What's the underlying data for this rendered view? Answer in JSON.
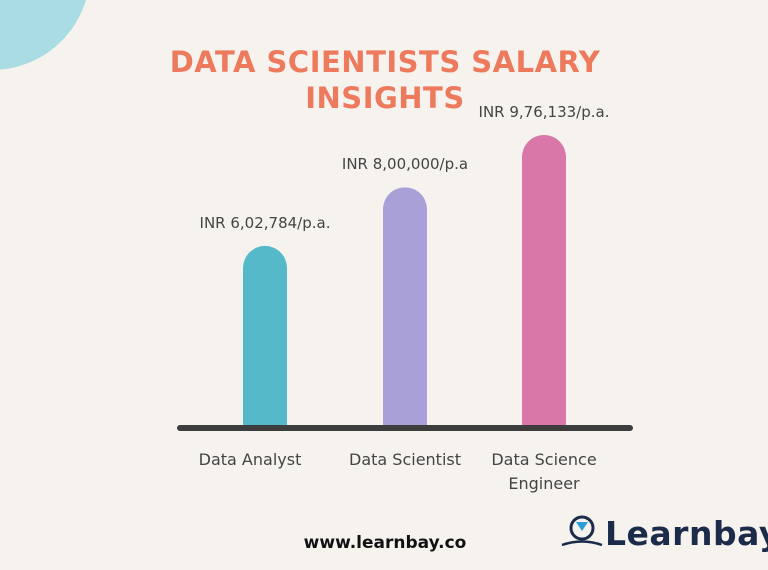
{
  "chart_data": {
    "type": "bar",
    "title": "DATA SCIENTISTS SALARY INSIGHTS",
    "categories": [
      "Data Analyst",
      "Data Scientist",
      "Data Science Engineer"
    ],
    "values": [
      602784,
      800000,
      976133
    ],
    "value_labels": [
      "INR 6,02,784/p.a.",
      "INR 8,00,000/p.a",
      "INR 9,76,133/p.a."
    ],
    "colors": [
      "#56b9c9",
      "#a8a0d6",
      "#d977a8"
    ]
  },
  "footer": {
    "url": "www.learnbay.co",
    "logo": "Learnbay"
  }
}
